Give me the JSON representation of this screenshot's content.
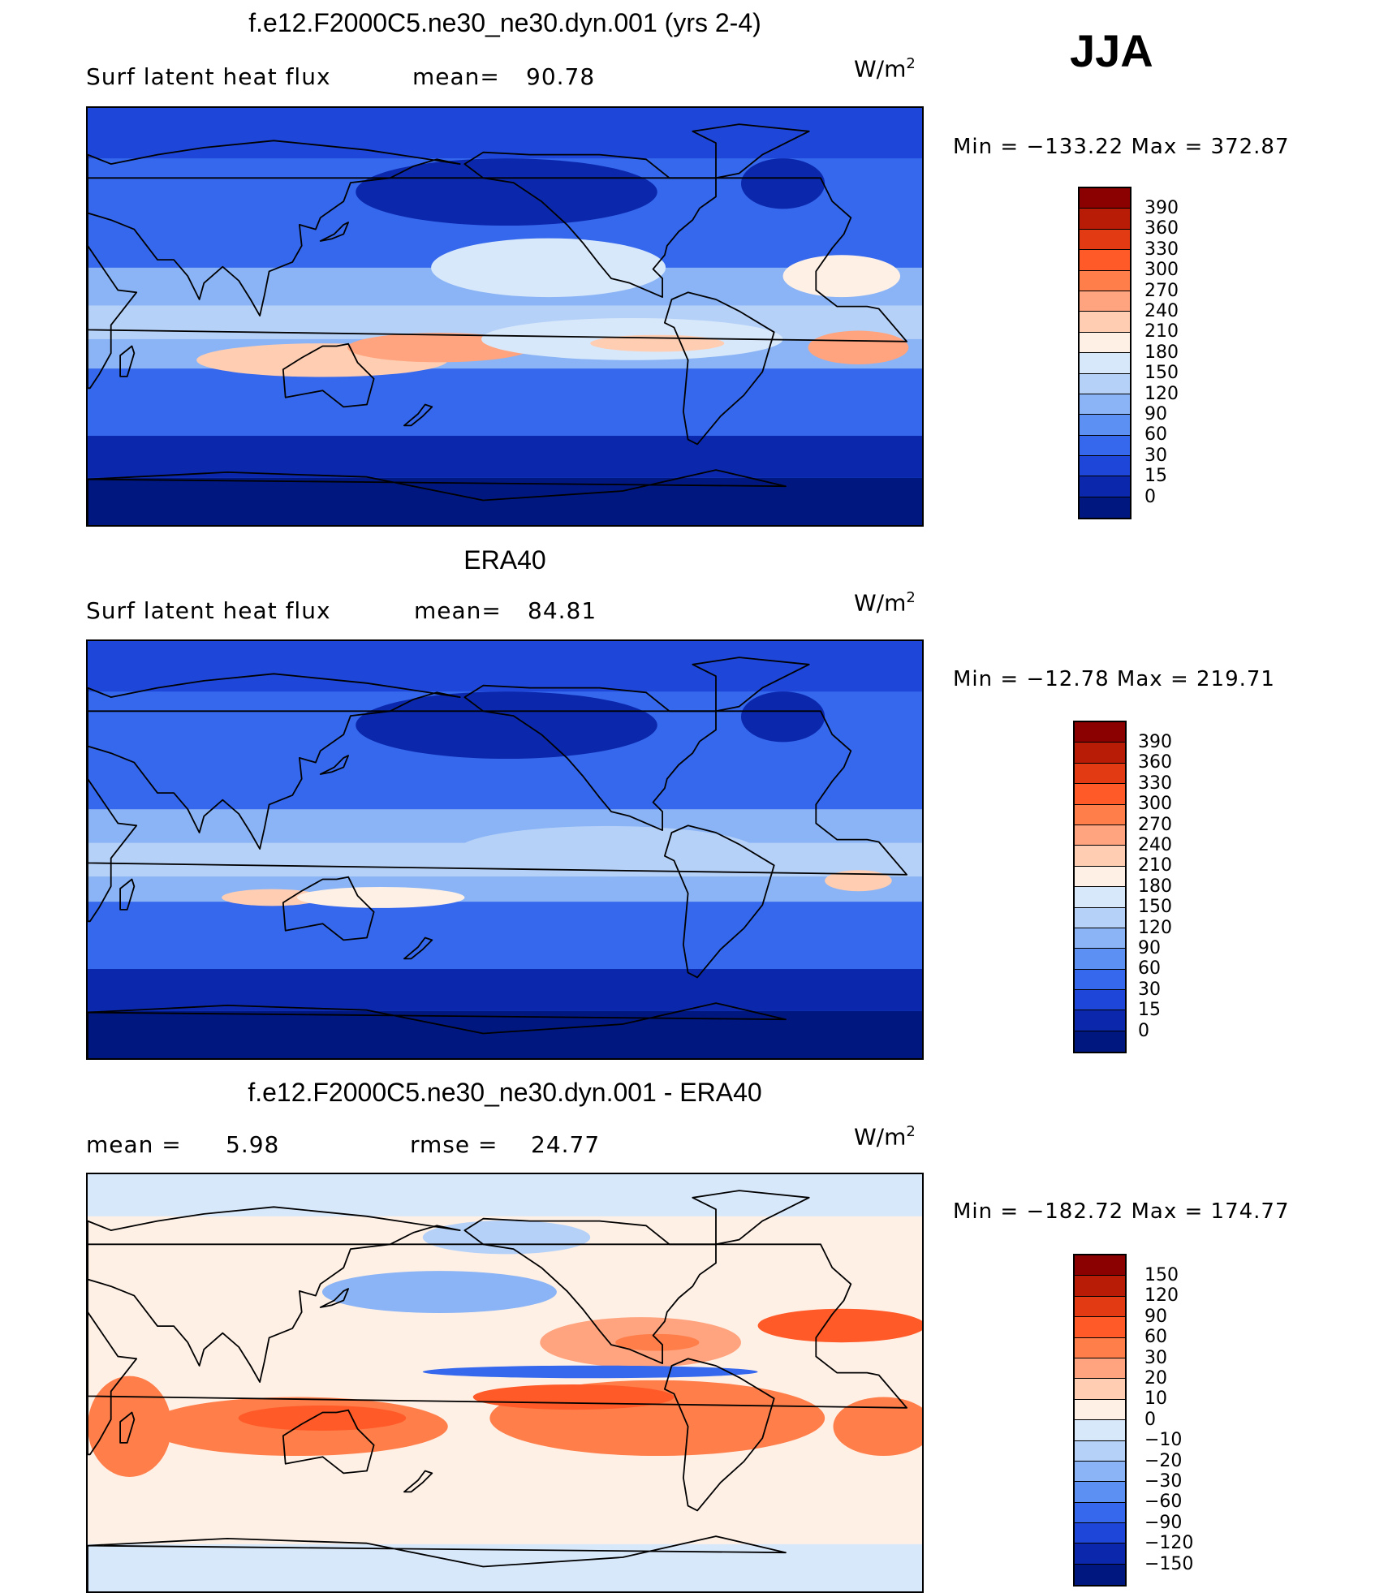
{
  "season": "JJA",
  "panels": [
    {
      "title": "f.e12.F2000C5.ne30_ne30.dyn.001 (yrs 2-4)",
      "left_text": "Surf latent heat flux",
      "stat_text": "mean=",
      "stat_value": "90.78",
      "units": "W/m",
      "units_exp": "2",
      "minmax": "Min = −133.22 Max = 372.87",
      "colorbar": {
        "labels": [
          "390",
          "360",
          "330",
          "300",
          "270",
          "240",
          "210",
          "180",
          "150",
          "120",
          "90",
          "60",
          "30",
          "15",
          "0"
        ],
        "colors": [
          "#8b0000",
          "#b81c06",
          "#e23a12",
          "#ff5a28",
          "#ff7e4a",
          "#ffa47e",
          "#ffcdb2",
          "#fff0e6",
          "#d8e8fb",
          "#b6d1f8",
          "#8ab4f5",
          "#5c90f2",
          "#3568ed",
          "#1e46d8",
          "#0b28ad",
          "#001780"
        ]
      },
      "field": "model"
    },
    {
      "title": "ERA40",
      "left_text": "Surf latent heat flux",
      "stat_text": "mean=",
      "stat_value": "84.81",
      "units": "W/m",
      "units_exp": "2",
      "minmax": "Min = −12.78 Max = 219.71",
      "colorbar": {
        "labels": [
          "390",
          "360",
          "330",
          "300",
          "270",
          "240",
          "210",
          "180",
          "150",
          "120",
          "90",
          "60",
          "30",
          "15",
          "0"
        ],
        "colors": [
          "#8b0000",
          "#b81c06",
          "#e23a12",
          "#ff5a28",
          "#ff7e4a",
          "#ffa47e",
          "#ffcdb2",
          "#fff0e6",
          "#d8e8fb",
          "#b6d1f8",
          "#8ab4f5",
          "#5c90f2",
          "#3568ed",
          "#1e46d8",
          "#0b28ad",
          "#001780"
        ]
      },
      "field": "obs"
    },
    {
      "title": "f.e12.F2000C5.ne30_ne30.dyn.001 - ERA40",
      "left_text": "mean =",
      "left_value": "5.98",
      "stat_text": "rmse =",
      "stat_value": "24.77",
      "units": "W/m",
      "units_exp": "2",
      "minmax": "Min = −182.72 Max = 174.77",
      "colorbar": {
        "labels": [
          "150",
          "120",
          "90",
          "60",
          "30",
          "20",
          "10",
          "0",
          "−10",
          "−20",
          "−30",
          "−60",
          "−90",
          "−120",
          "−150"
        ],
        "colors": [
          "#8b0000",
          "#b81c06",
          "#e23a12",
          "#ff5a28",
          "#ff7e4a",
          "#ffa47e",
          "#ffcdb2",
          "#fff0e6",
          "#d8e8fb",
          "#b6d1f8",
          "#8ab4f5",
          "#5c90f2",
          "#3568ed",
          "#1e46d8",
          "#0b28ad",
          "#001780"
        ]
      },
      "field": "diff"
    }
  ]
}
